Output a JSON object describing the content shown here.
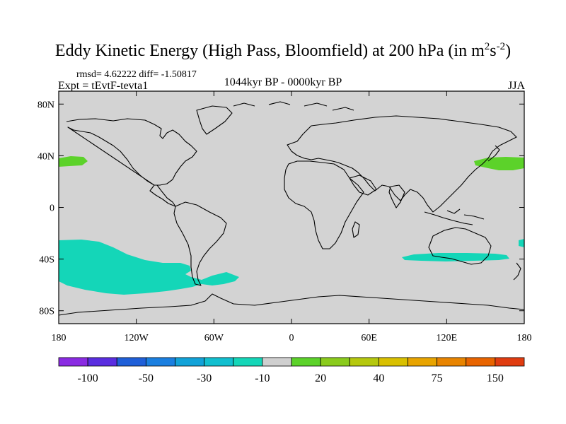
{
  "title": {
    "main": "Eddy Kinetic Energy (High Pass, Bloomfield) at 200 hPa (in m",
    "sup1": "2",
    "mid": "s",
    "sup2": "-2",
    "end": ")"
  },
  "stats": "rmsd= 4.62222 diff= -1.50817",
  "experiment": "Expt = tEvtF-tevta1",
  "period": "1044kyr BP - 0000kyr BP",
  "season": "JJA",
  "map": {
    "lon_range": [
      -180,
      180
    ],
    "lat_range": [
      -90,
      90
    ],
    "ocean_color": "#d3d3d3",
    "lat_ticks": [
      {
        "value": 80,
        "label": "80N"
      },
      {
        "value": 40,
        "label": "40N"
      },
      {
        "value": 0,
        "label": "0"
      },
      {
        "value": -40,
        "label": "40S"
      },
      {
        "value": -80,
        "label": "80S"
      }
    ],
    "lon_ticks": [
      {
        "value": -180,
        "label": "180"
      },
      {
        "value": -120,
        "label": "120W"
      },
      {
        "value": -60,
        "label": "60W"
      },
      {
        "value": 0,
        "label": "0"
      },
      {
        "value": 60,
        "label": "60E"
      },
      {
        "value": 120,
        "label": "120E"
      },
      {
        "value": 180,
        "label": "180"
      }
    ]
  },
  "colorbar": {
    "colors": [
      "#8a2be2",
      "#5a2de0",
      "#1f5fd8",
      "#1a7fe0",
      "#12a2d8",
      "#12bfcf",
      "#14d6b8",
      "#cfcfcf",
      "#5cd22a",
      "#8acb1c",
      "#b5c80e",
      "#d9c000",
      "#e8a400",
      "#e88400",
      "#e86400",
      "#e03c10"
    ],
    "labels": [
      {
        "after_box": 1,
        "text": "-100"
      },
      {
        "after_box": 3,
        "text": "-50"
      },
      {
        "after_box": 5,
        "text": "-30"
      },
      {
        "after_box": 7,
        "text": "-10"
      },
      {
        "after_box": 9,
        "text": "20"
      },
      {
        "after_box": 11,
        "text": "40"
      },
      {
        "after_box": 13,
        "text": "75"
      },
      {
        "after_box": 15,
        "text": "150"
      }
    ]
  },
  "colors": {
    "negative_fill": "#14d6b8",
    "positive_fill": "#5cd22a",
    "coast": "#000000"
  }
}
